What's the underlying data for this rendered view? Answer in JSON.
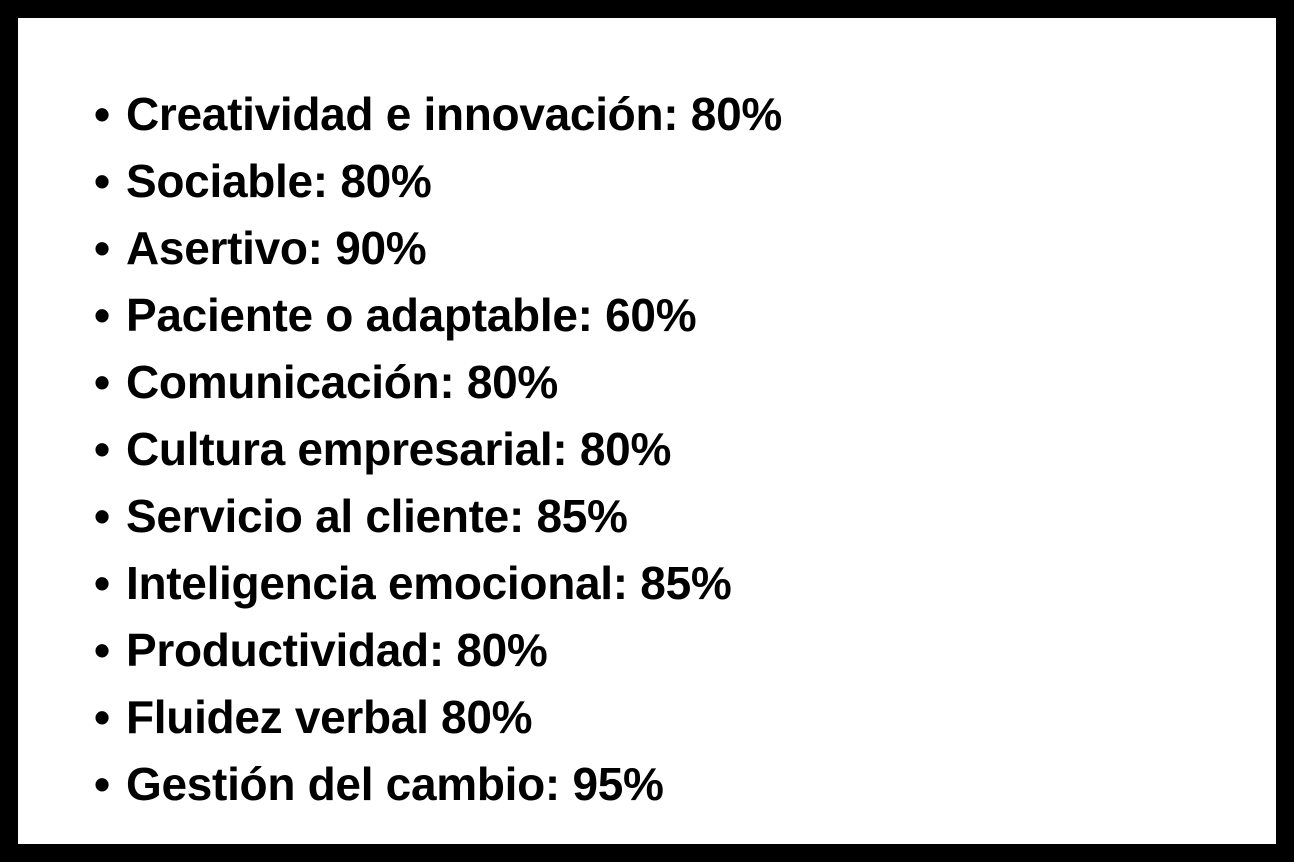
{
  "bullet": "•",
  "items": [
    {
      "label": "Creatividad e innovación",
      "separator": ":",
      "value": "80%"
    },
    {
      "label": "Sociable",
      "separator": ":",
      "value": "80%"
    },
    {
      "label": "Asertivo",
      "separator": ":",
      "value": "90%"
    },
    {
      "label": "Paciente o adaptable",
      "separator": ":",
      "value": "60%"
    },
    {
      "label": "Comunicación",
      "separator": ":",
      "value": "80%"
    },
    {
      "label": "Cultura empresarial",
      "separator": ":",
      "value": "80%"
    },
    {
      "label": "Servicio al cliente",
      "separator": ":",
      "value": "85%"
    },
    {
      "label": "Inteligencia emocional",
      "separator": ":",
      "value": "85%"
    },
    {
      "label": "Productividad",
      "separator": ":",
      "value": "80%"
    },
    {
      "label": "Fluidez verbal",
      "separator": "",
      "value": "80%"
    },
    {
      "label": "Gestión del cambio",
      "separator": ":",
      "value": "95%"
    }
  ]
}
